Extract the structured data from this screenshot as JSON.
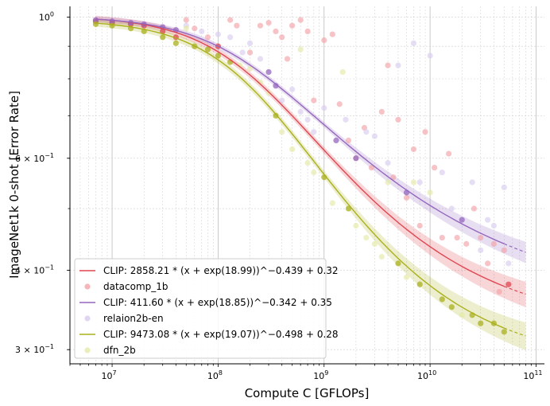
{
  "chart_data": {
    "type": "scatter",
    "title": "",
    "xlabel": "Compute C [GFLOPs]",
    "ylabel": "ImageNet1k 0-shot [Error Rate]",
    "xscale": "log",
    "yscale": "log",
    "xlim": [
      4000000.0,
      120000000000.0
    ],
    "ylim": [
      0.285,
      1.04
    ],
    "grid": true,
    "legend_position": "lower-left",
    "x_ticks": [
      {
        "value": 10000000.0,
        "base": "10",
        "exp": "7"
      },
      {
        "value": 100000000.0,
        "base": "10",
        "exp": "8"
      },
      {
        "value": 1000000000.0,
        "base": "10",
        "exp": "9"
      },
      {
        "value": 10000000000.0,
        "base": "10",
        "exp": "10"
      },
      {
        "value": 100000000000.0,
        "base": "10",
        "exp": "11"
      }
    ],
    "y_ticks": [
      {
        "value": 1.0,
        "label": "10",
        "exp": "0"
      },
      {
        "value": 0.6,
        "label": "6 × 10",
        "exp": "−1"
      },
      {
        "value": 0.4,
        "label": "4 × 10",
        "exp": "−1"
      },
      {
        "value": 0.3,
        "label": "3 × 10",
        "exp": "−1"
      }
    ],
    "series": [
      {
        "name": "datacomp_1b",
        "fit_label": "CLIP: 2858.21 * (x + exp(18.99))^−0.439 + 0.32",
        "color": "#e0454f",
        "point_color": "#f3a3a8",
        "fit": {
          "A": 2858.21,
          "e": 18.99,
          "alpha": 0.439,
          "E": 0.32,
          "band": 0.012,
          "x_end": 50000000000.0,
          "x_extrap": 80000000000.0
        },
        "points": [
          [
            7000000.0,
            0.985
          ],
          [
            10000000.0,
            0.98
          ],
          [
            15000000.0,
            0.975
          ],
          [
            20000000.0,
            0.97
          ],
          [
            30000000.0,
            0.95
          ],
          [
            40000000.0,
            0.93
          ],
          [
            50000000.0,
            0.99
          ],
          [
            60000000.0,
            0.96
          ],
          [
            80000000.0,
            0.93
          ],
          [
            100000000.0,
            0.9
          ],
          [
            130000000.0,
            0.99
          ],
          [
            150000000.0,
            0.97
          ],
          [
            200000000.0,
            0.88
          ],
          [
            250000000.0,
            0.97
          ],
          [
            300000000.0,
            0.98
          ],
          [
            350000000.0,
            0.95
          ],
          [
            400000000.0,
            0.93
          ],
          [
            450000000.0,
            0.86
          ],
          [
            500000000.0,
            0.97
          ],
          [
            600000000.0,
            0.99
          ],
          [
            700000000.0,
            0.95
          ],
          [
            800000000.0,
            0.74
          ],
          [
            1000000000.0,
            0.92
          ],
          [
            1200000000.0,
            0.94
          ],
          [
            1400000000.0,
            0.73
          ],
          [
            1700000000.0,
            0.64
          ],
          [
            2000000000.0,
            0.6
          ],
          [
            2400000000.0,
            0.67
          ],
          [
            2800000000.0,
            0.58
          ],
          [
            3500000000.0,
            0.71
          ],
          [
            4000000000.0,
            0.84
          ],
          [
            4500000000.0,
            0.56
          ],
          [
            5000000000.0,
            0.69
          ],
          [
            6000000000.0,
            0.52
          ],
          [
            7000000000.0,
            0.62
          ],
          [
            8000000000.0,
            0.47
          ],
          [
            9000000000.0,
            0.66
          ],
          [
            11000000000.0,
            0.58
          ],
          [
            13000000000.0,
            0.45
          ],
          [
            15000000000.0,
            0.61
          ],
          [
            18000000000.0,
            0.45
          ],
          [
            22000000000.0,
            0.44
          ],
          [
            26000000000.0,
            0.5
          ],
          [
            30000000000.0,
            0.45
          ],
          [
            35000000000.0,
            0.41
          ],
          [
            40000000000.0,
            0.44
          ],
          [
            45000000000.0,
            0.37
          ],
          [
            50000000000.0,
            0.43
          ],
          [
            55000000000.0,
            0.38
          ]
        ]
      },
      {
        "name": "relaion2b-en",
        "fit_label": "CLIP: 411.60 * (x + exp(18.85))^−0.342 + 0.35",
        "color": "#9467bd",
        "point_color": "#d9ccee",
        "fit": {
          "A": 411.6,
          "e": 18.85,
          "alpha": 0.342,
          "E": 0.35,
          "band": 0.01,
          "x_end": 50000000000.0,
          "x_extrap": 80000000000.0
        },
        "points": [
          [
            7000000.0,
            0.99
          ],
          [
            10000000.0,
            0.985
          ],
          [
            15000000.0,
            0.98
          ],
          [
            20000000.0,
            0.975
          ],
          [
            30000000.0,
            0.965
          ],
          [
            40000000.0,
            0.955
          ],
          [
            50000000.0,
            0.97
          ],
          [
            70000000.0,
            0.95
          ],
          [
            100000000.0,
            0.94
          ],
          [
            130000000.0,
            0.93
          ],
          [
            170000000.0,
            0.88
          ],
          [
            200000000.0,
            0.91
          ],
          [
            250000000.0,
            0.86
          ],
          [
            300000000.0,
            0.82
          ],
          [
            350000000.0,
            0.78
          ],
          [
            400000000.0,
            0.74
          ],
          [
            500000000.0,
            0.77
          ],
          [
            600000000.0,
            0.71
          ],
          [
            700000000.0,
            0.69
          ],
          [
            800000000.0,
            0.66
          ],
          [
            1000000000.0,
            0.72
          ],
          [
            1300000000.0,
            0.64
          ],
          [
            1600000000.0,
            0.69
          ],
          [
            2000000000.0,
            0.6
          ],
          [
            2500000000.0,
            0.66
          ],
          [
            3000000000.0,
            0.65
          ],
          [
            4000000000.0,
            0.59
          ],
          [
            5000000000.0,
            0.84
          ],
          [
            6000000000.0,
            0.53
          ],
          [
            7000000000.0,
            0.91
          ],
          [
            8000000000.0,
            0.55
          ],
          [
            10000000000.0,
            0.87
          ],
          [
            13000000000.0,
            0.57
          ],
          [
            16000000000.0,
            0.5
          ],
          [
            20000000000.0,
            0.48
          ],
          [
            25000000000.0,
            0.55
          ],
          [
            30000000000.0,
            0.43
          ],
          [
            35000000000.0,
            0.48
          ],
          [
            40000000000.0,
            0.47
          ],
          [
            50000000000.0,
            0.54
          ],
          [
            55000000000.0,
            0.41
          ]
        ]
      },
      {
        "name": "dfn_2b",
        "fit_label": "CLIP: 9473.08 * (x + exp(19.07))^−0.498 + 0.28",
        "color": "#aab01c",
        "point_color": "#e5eaa6",
        "fit": {
          "A": 9473.08,
          "e": 19.07,
          "alpha": 0.498,
          "E": 0.28,
          "band": 0.013,
          "x_end": 50000000000.0,
          "x_extrap": 80000000000.0
        },
        "points": [
          [
            7000000.0,
            0.975
          ],
          [
            10000000.0,
            0.97
          ],
          [
            15000000.0,
            0.96
          ],
          [
            20000000.0,
            0.95
          ],
          [
            30000000.0,
            0.93
          ],
          [
            40000000.0,
            0.91
          ],
          [
            50000000.0,
            0.96
          ],
          [
            60000000.0,
            0.9
          ],
          [
            80000000.0,
            0.89
          ],
          [
            100000000.0,
            0.87
          ],
          [
            130000000.0,
            0.85
          ],
          [
            160000000.0,
            0.84
          ],
          [
            200000000.0,
            0.83
          ],
          [
            250000000.0,
            0.79
          ],
          [
            300000000.0,
            0.76
          ],
          [
            350000000.0,
            0.7
          ],
          [
            400000000.0,
            0.66
          ],
          [
            500000000.0,
            0.62
          ],
          [
            600000000.0,
            0.89
          ],
          [
            700000000.0,
            0.59
          ],
          [
            800000000.0,
            0.57
          ],
          [
            1000000000.0,
            0.56
          ],
          [
            1200000000.0,
            0.51
          ],
          [
            1500000000.0,
            0.82
          ],
          [
            1700000000.0,
            0.5
          ],
          [
            2000000000.0,
            0.47
          ],
          [
            2500000000.0,
            0.45
          ],
          [
            3000000000.0,
            0.44
          ],
          [
            3500000000.0,
            0.42
          ],
          [
            4000000000.0,
            0.55
          ],
          [
            5000000000.0,
            0.41
          ],
          [
            6000000000.0,
            0.39
          ],
          [
            7000000000.0,
            0.55
          ],
          [
            8000000000.0,
            0.38
          ],
          [
            10000000000.0,
            0.53
          ],
          [
            13000000000.0,
            0.36
          ],
          [
            16000000000.0,
            0.35
          ],
          [
            20000000000.0,
            0.34
          ],
          [
            25000000000.0,
            0.34
          ],
          [
            30000000000.0,
            0.33
          ],
          [
            40000000000.0,
            0.33
          ],
          [
            50000000000.0,
            0.32
          ]
        ]
      }
    ]
  }
}
